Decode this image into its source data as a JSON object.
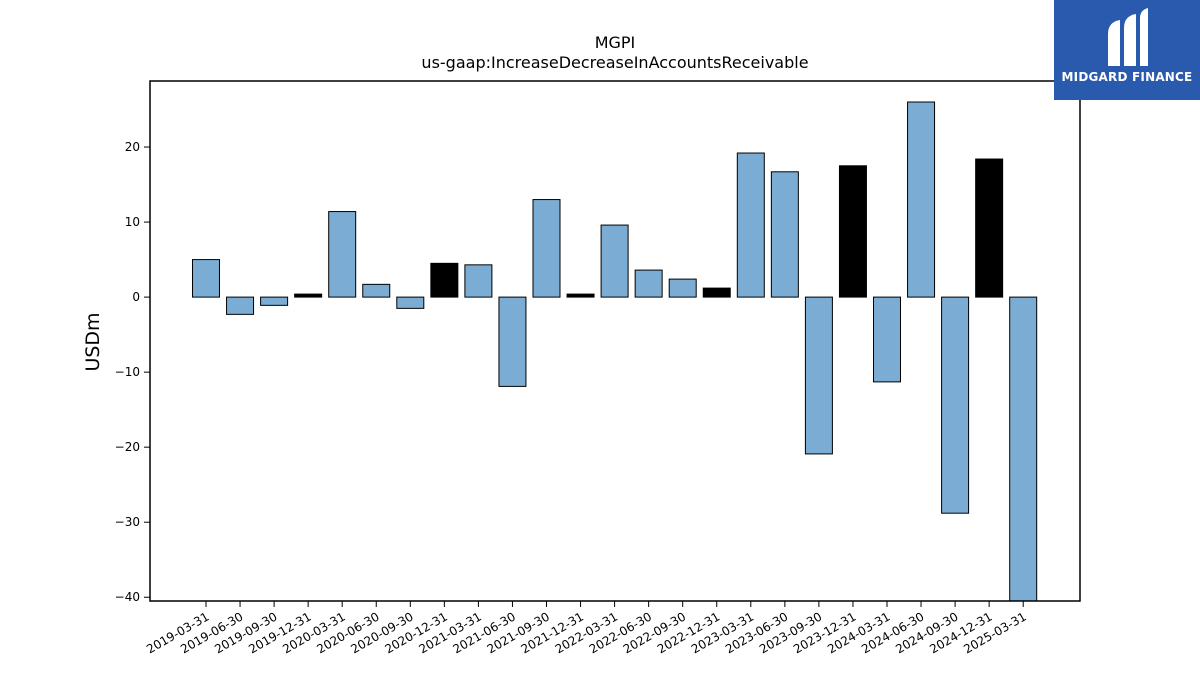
{
  "brand": {
    "name": "MIDGARD FINANCE",
    "logo_icon": "midgard-m-logo-icon",
    "background": "#2a5aad"
  },
  "chart_data": {
    "type": "bar",
    "title": "MGPI",
    "subtitle": "us-gaap:IncreaseDecreaseInAccountsReceivable",
    "xlabel": "",
    "ylabel": "USDm",
    "ylim": [
      -40.5,
      28.8
    ],
    "yticks": [
      20,
      10,
      0,
      -10,
      -20,
      -30,
      -40
    ],
    "ytick_labels": [
      "20",
      "10",
      "0",
      "−10",
      "−20",
      "−30",
      "−40"
    ],
    "grid": false,
    "colors": {
      "quarter": "#7bacd3",
      "year_end": "#000000",
      "edge": "#000000"
    },
    "categories": [
      "2019-03-31",
      "2019-06-30",
      "2019-09-30",
      "2019-12-31",
      "2020-03-31",
      "2020-06-30",
      "2020-09-30",
      "2020-12-31",
      "2021-03-31",
      "2021-06-30",
      "2021-09-30",
      "2021-12-31",
      "2022-03-31",
      "2022-06-30",
      "2022-09-30",
      "2022-12-31",
      "2023-03-31",
      "2023-06-30",
      "2023-09-30",
      "2023-12-31",
      "2024-03-31",
      "2024-06-30",
      "2024-09-30",
      "2024-12-31",
      "2025-03-31"
    ],
    "values": [
      5.0,
      -2.3,
      -1.1,
      0.4,
      11.4,
      1.7,
      -1.5,
      4.5,
      4.3,
      -11.9,
      13.0,
      0.4,
      9.6,
      3.6,
      2.4,
      1.2,
      19.2,
      16.7,
      -20.9,
      17.5,
      -11.3,
      26.0,
      -28.8,
      18.4,
      -40.5
    ],
    "year_end_flags": [
      false,
      false,
      false,
      true,
      false,
      false,
      false,
      true,
      false,
      false,
      false,
      true,
      false,
      false,
      false,
      true,
      false,
      false,
      false,
      true,
      false,
      false,
      false,
      true,
      false
    ]
  }
}
